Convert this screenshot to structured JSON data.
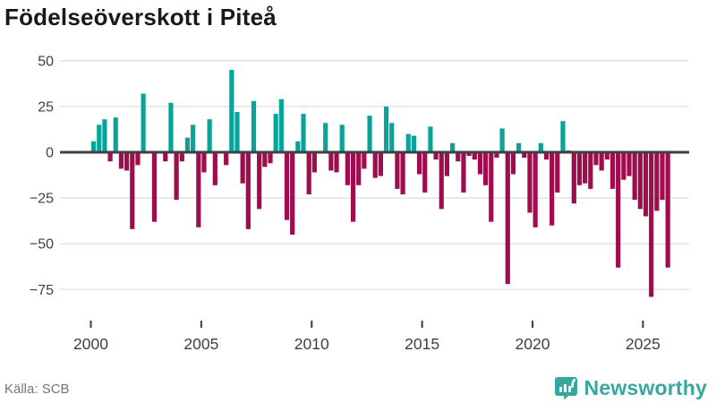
{
  "title": "Födelseöverskott i Piteå",
  "source": "Källa: SCB",
  "brand": {
    "name": "Newsworthy",
    "icon": "bar-chart-bubble-icon"
  },
  "colors": {
    "positive": "#0aa39a",
    "negative": "#a00d4e",
    "grid": "#e4e4e4",
    "zero_line": "#3f3f3f",
    "axis_text": "#3f3f3f",
    "title_text": "#191919",
    "source_text": "#757575",
    "brand_teal": "#38a7a1"
  },
  "chart_data": {
    "type": "bar",
    "title": "Födelseöverskott i Piteå",
    "xlabel": "",
    "ylabel": "",
    "frequency": "quarterly",
    "start_period": "2000 Q1",
    "end_period": "2026 Q1",
    "ylim": [
      -85,
      52
    ],
    "grid": "horizontal",
    "legend": "none",
    "y_ticks": [
      "50",
      "25",
      "0",
      "−25",
      "−50",
      "−75"
    ],
    "y_tick_values": [
      50,
      25,
      0,
      -25,
      -50,
      -75
    ],
    "x_ticks": [
      2000,
      2005,
      2010,
      2015,
      2020,
      2025
    ],
    "values": [
      6,
      15,
      18,
      -5,
      19,
      -9,
      -10,
      -42,
      -7,
      32,
      0,
      -38,
      0,
      -5,
      27,
      -26,
      -5,
      8,
      15,
      -41,
      -11,
      18,
      -18,
      0,
      -7,
      45,
      22,
      -17,
      -42,
      28,
      -31,
      -8,
      -6,
      21,
      29,
      -37,
      -45,
      6,
      21,
      -23,
      -11,
      0,
      16,
      -10,
      -11,
      15,
      -18,
      -38,
      -18,
      -9,
      20,
      -14,
      -13,
      25,
      16,
      -20,
      -23,
      10,
      9,
      -12,
      -22,
      14,
      -4,
      -31,
      -13,
      5,
      -5,
      -22,
      -2,
      -4,
      -12,
      -18,
      -38,
      -3,
      13,
      -72,
      -12,
      5,
      -3,
      -33,
      -41,
      5,
      -4,
      -40,
      -22,
      17,
      1,
      -28,
      -18,
      -17,
      -20,
      -7,
      -10,
      -4,
      -20,
      -63,
      -15,
      -13,
      -26,
      -31,
      -35,
      -79,
      -32,
      -26,
      -63
    ]
  }
}
